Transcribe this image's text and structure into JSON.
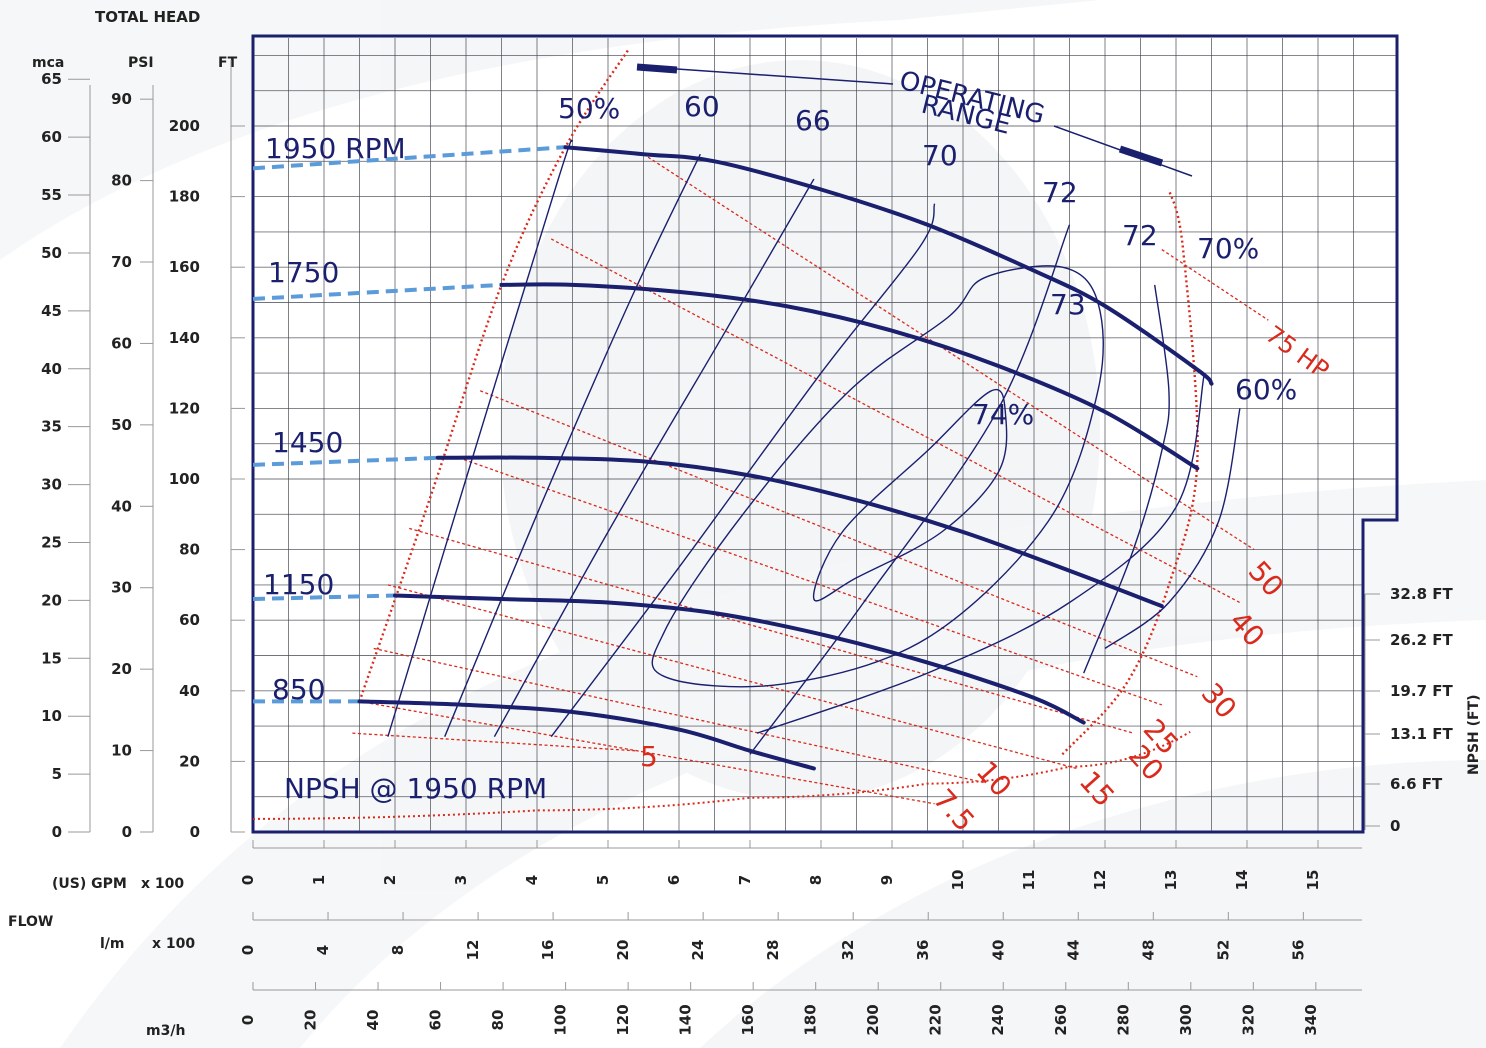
{
  "chart_data": {
    "type": "line",
    "title": "",
    "axes": {
      "total_head_label": "TOTAL HEAD",
      "mca": {
        "label": "mca",
        "ticks": [
          0,
          5,
          10,
          15,
          20,
          25,
          30,
          35,
          40,
          45,
          50,
          55,
          60,
          65
        ],
        "range": [
          0,
          65
        ]
      },
      "psi": {
        "label": "PSI",
        "ticks": [
          0,
          10,
          20,
          30,
          40,
          50,
          60,
          70,
          80,
          90
        ],
        "range": [
          0,
          93
        ]
      },
      "ft": {
        "label": "FT",
        "ticks": [
          0,
          20,
          40,
          60,
          80,
          100,
          120,
          140,
          160,
          180,
          200
        ],
        "range": [
          0,
          215
        ]
      },
      "flow_label": "FLOW",
      "gpm": {
        "label": "(US) GPM",
        "multiplier": "x 100",
        "ticks": [
          0,
          1,
          2,
          3,
          4,
          5,
          6,
          7,
          8,
          9,
          10,
          11,
          12,
          13,
          14,
          15
        ],
        "range": [
          0,
          15.5
        ]
      },
      "lpm": {
        "label": "l/m",
        "multiplier": "x 100",
        "ticks": [
          0,
          4,
          8,
          12,
          16,
          20,
          24,
          28,
          32,
          36,
          40,
          44,
          48,
          52,
          56
        ]
      },
      "m3h": {
        "label": "m3/h",
        "ticks": [
          0,
          20,
          40,
          60,
          80,
          100,
          120,
          140,
          160,
          180,
          200,
          220,
          240,
          260,
          280,
          300,
          320,
          340
        ]
      },
      "npsh": {
        "label": "NPSH (FT)",
        "ticks": [
          "0",
          "6.6 FT",
          "13.1 FT",
          "19.7 FT",
          "26.2 FT",
          "32.8 FT"
        ]
      }
    },
    "speed_curves": [
      {
        "name": "1950 RPM",
        "points": [
          [
            4.4,
            194
          ],
          [
            5.5,
            192
          ],
          [
            6.5,
            190
          ],
          [
            8,
            182
          ],
          [
            9.5,
            172
          ],
          [
            11,
            159
          ],
          [
            12,
            149
          ],
          [
            13.3,
            131
          ],
          [
            13.5,
            127
          ]
        ]
      },
      {
        "name": "1750",
        "points": [
          [
            3.5,
            155
          ],
          [
            4.5,
            155
          ],
          [
            6,
            153
          ],
          [
            7.5,
            149
          ],
          [
            9,
            142
          ],
          [
            10.5,
            132
          ],
          [
            12,
            119
          ],
          [
            13.3,
            103
          ]
        ]
      },
      {
        "name": "1450",
        "points": [
          [
            2.6,
            106
          ],
          [
            4,
            106
          ],
          [
            5.5,
            105
          ],
          [
            7,
            101
          ],
          [
            8.5,
            94
          ],
          [
            10,
            85
          ],
          [
            11.5,
            74
          ],
          [
            12.8,
            64
          ]
        ]
      },
      {
        "name": "1150",
        "points": [
          [
            2,
            67
          ],
          [
            3.5,
            66
          ],
          [
            5,
            65
          ],
          [
            6.5,
            62
          ],
          [
            8,
            56
          ],
          [
            9.5,
            48
          ],
          [
            11,
            38
          ],
          [
            11.7,
            31
          ]
        ]
      },
      {
        "name": "850",
        "points": [
          [
            1.5,
            37
          ],
          [
            3,
            36
          ],
          [
            4.5,
            34
          ],
          [
            6,
            29
          ],
          [
            7,
            23
          ],
          [
            7.9,
            18
          ]
        ]
      }
    ],
    "shutoff_dashed": [
      {
        "name": "1950 RPM",
        "x0": 0,
        "y0": 188,
        "x1": 4.4,
        "y1": 194
      },
      {
        "name": "1750",
        "x0": 0,
        "y0": 151,
        "x1": 3.5,
        "y1": 155
      },
      {
        "name": "1450",
        "x0": 0,
        "y0": 104,
        "x1": 2.6,
        "y1": 106
      },
      {
        "name": "1150",
        "x0": 0,
        "y0": 66,
        "x1": 2,
        "y1": 67
      },
      {
        "name": "850",
        "x0": 0,
        "y0": 37,
        "x1": 1.5,
        "y1": 37
      }
    ],
    "efficiency_lines": [
      {
        "name": "50%",
        "points": [
          [
            1.9,
            27
          ],
          [
            3,
            100
          ],
          [
            4.3,
            185
          ],
          [
            4.5,
            196
          ]
        ]
      },
      {
        "name": "60",
        "points": [
          [
            2.7,
            27
          ],
          [
            4,
            90
          ],
          [
            5.3,
            150
          ],
          [
            6.3,
            192
          ]
        ]
      },
      {
        "name": "66",
        "points": [
          [
            3.4,
            27
          ],
          [
            5,
            85
          ],
          [
            6.6,
            140
          ],
          [
            7.9,
            185
          ]
        ]
      },
      {
        "name": "70",
        "points": [
          [
            4.2,
            27
          ],
          [
            6,
            75
          ],
          [
            8,
            130
          ],
          [
            9.4,
            166
          ],
          [
            9.6,
            178
          ]
        ]
      },
      {
        "name": "72",
        "points": [
          [
            7,
            22
          ],
          [
            8.6,
            65
          ],
          [
            10.5,
            120
          ],
          [
            11.5,
            172
          ]
        ]
      },
      {
        "name": "72",
        "points": [
          [
            11.7,
            45
          ],
          [
            12.4,
            80
          ],
          [
            12.8,
            108
          ],
          [
            12.9,
            125
          ],
          [
            12.7,
            155
          ]
        ]
      },
      {
        "name": "70%",
        "points": [
          [
            7.1,
            28
          ],
          [
            9.5,
            45
          ],
          [
            11.5,
            65
          ],
          [
            13,
            92
          ],
          [
            13.4,
            130
          ]
        ]
      },
      {
        "name": "60%",
        "points": [
          [
            12,
            52
          ],
          [
            12.9,
            65
          ],
          [
            13.6,
            88
          ],
          [
            13.9,
            120
          ]
        ]
      }
    ],
    "efficiency_islands": [
      {
        "name": "73",
        "points": [
          [
            9.8,
            146
          ],
          [
            8.4,
            125
          ],
          [
            6.9,
            90
          ],
          [
            5.8,
            57
          ],
          [
            5.8,
            44
          ],
          [
            7.5,
            42
          ],
          [
            9.5,
            55
          ],
          [
            11.2,
            88
          ],
          [
            11.9,
            125
          ],
          [
            11.9,
            150
          ],
          [
            11.4,
            160
          ],
          [
            10.3,
            157
          ]
        ]
      },
      {
        "name": "74%",
        "points": [
          [
            10.4,
            125
          ],
          [
            9.5,
            108
          ],
          [
            8.3,
            85
          ],
          [
            7.9,
            66
          ],
          [
            8.5,
            72
          ],
          [
            9.7,
            85
          ],
          [
            10.5,
            102
          ],
          [
            10.6,
            118
          ]
        ]
      }
    ],
    "power_lines": [
      {
        "name": "75 HP",
        "x0": 12.8,
        "y0": 165,
        "x1": 14.3,
        "y1": 145
      },
      {
        "name": "50",
        "x0": 5.5,
        "y0": 192,
        "x1": 14.1,
        "y1": 80
      },
      {
        "name": "40",
        "x0": 4.2,
        "y0": 168,
        "x1": 13.9,
        "y1": 65
      },
      {
        "name": "30",
        "x0": 3.2,
        "y0": 125,
        "x1": 13.3,
        "y1": 44
      },
      {
        "name": "25",
        "x0": 2.9,
        "y0": 106,
        "x1": 12.8,
        "y1": 36
      },
      {
        "name": "20",
        "x0": 2.2,
        "y0": 86,
        "x1": 12.4,
        "y1": 28
      },
      {
        "name": "15",
        "x0": 1.9,
        "y0": 70,
        "x1": 11.6,
        "y1": 18
      },
      {
        "name": "10",
        "x0": 1.7,
        "y0": 52,
        "x1": 10.3,
        "y1": 14
      },
      {
        "name": "7.5",
        "x0": 1.5,
        "y0": 37,
        "x1": 9.6,
        "y1": 8
      },
      {
        "name": "5",
        "x0": 1.4,
        "y0": 28,
        "x1": 5.4,
        "y1": 23
      }
    ],
    "operating_range": {
      "name": "OPERATING RANGE",
      "left_boundary": [
        [
          1.5,
          37
        ],
        [
          2.5,
          95
        ],
        [
          3.5,
          155
        ],
        [
          4.4,
          194
        ],
        [
          5.3,
          222
        ]
      ],
      "right_boundary": [
        [
          11.4,
          22
        ],
        [
          12.3,
          42
        ],
        [
          12.9,
          70
        ],
        [
          13.3,
          105
        ],
        [
          13.1,
          165
        ],
        [
          12.9,
          182
        ]
      ]
    },
    "npsh_curve": {
      "name": "NPSH @ 1950 RPM",
      "points": [
        [
          0,
          1
        ],
        [
          4,
          2.2
        ],
        [
          7,
          4
        ],
        [
          9.5,
          6
        ],
        [
          11.5,
          8.4
        ],
        [
          13.2,
          13.3
        ]
      ],
      "scale_max_ft": 34
    }
  }
}
